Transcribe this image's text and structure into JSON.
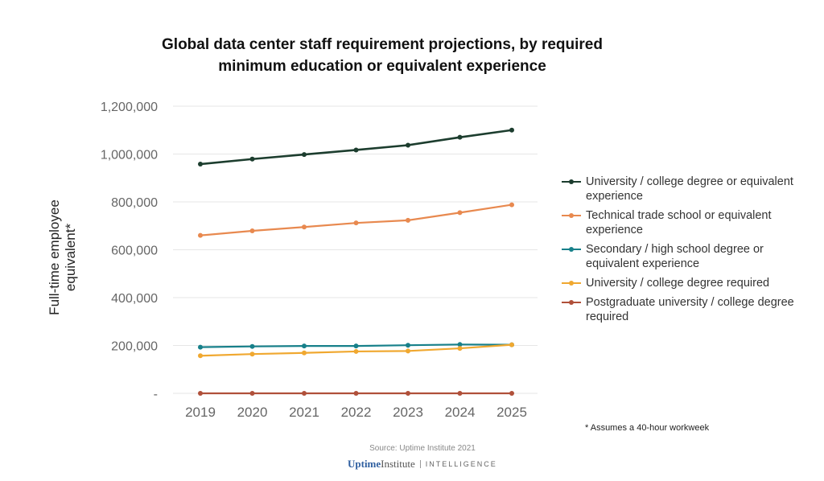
{
  "chart_data": {
    "type": "line",
    "title": "Global data center staff requirement projections, by required minimum education or equivalent experience",
    "ylabel": "Full-time employee equivalent*",
    "xlabel": "",
    "x": [
      "2019",
      "2020",
      "2021",
      "2022",
      "2023",
      "2024",
      "2025"
    ],
    "ylim": [
      0,
      1200000
    ],
    "yticks": [
      "-",
      "200,000",
      "400,000",
      "600,000",
      "800,000",
      "1,000,000",
      "1,200,000"
    ],
    "grid": true,
    "legend_position": "right",
    "series": [
      {
        "name": "University / college degree or equivalent experience",
        "color": "#1c3d2e",
        "values": [
          958000,
          979000,
          998000,
          1017000,
          1037000,
          1070000,
          1100000
        ]
      },
      {
        "name": "Technical trade school or equivalent experience",
        "color": "#e8894f",
        "values": [
          660000,
          679000,
          695000,
          712000,
          723000,
          755000,
          788000
        ]
      },
      {
        "name": "Secondary / high school degree or equivalent experience",
        "color": "#17808a",
        "values": [
          193000,
          196000,
          198000,
          198000,
          201000,
          204000,
          203000
        ]
      },
      {
        "name": "University / college degree required",
        "color": "#f0a830",
        "values": [
          157000,
          164000,
          169000,
          175000,
          177000,
          188000,
          203000
        ]
      },
      {
        "name": "Postgraduate university / college degree required",
        "color": "#b0503a",
        "values": [
          0,
          0,
          0,
          0,
          0,
          0,
          0
        ]
      }
    ],
    "footnote": "* Assumes a 40-hour workweek",
    "source": "Source: Uptime Institute 2021"
  },
  "logo": {
    "brand1": "Uptime",
    "brand2": "Institute",
    "suffix": "INTELLIGENCE"
  }
}
